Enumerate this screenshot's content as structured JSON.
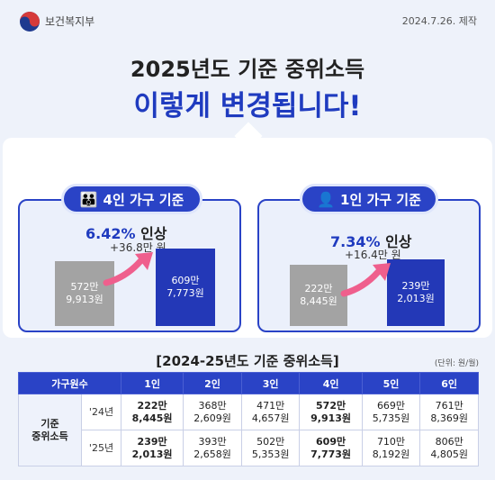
{
  "header": {
    "ministry": "보건복지부",
    "date": "2024.7.26. 제작"
  },
  "title": {
    "line1": "2025년도 기준 중위소득",
    "line2": "이렇게 변경됩니다!"
  },
  "colors": {
    "accent": "#2a43c6",
    "gray_bar": "#a3a3a3",
    "arrow": "#ef5f8d"
  },
  "cards": {
    "four": {
      "label": "4인 가구 기준",
      "icon": "family-icon",
      "rate": "6.42%",
      "rate_suffix": " 인상",
      "increase": "+36.8만 원",
      "before": "572만\n9,913원",
      "after": "609만\n7,773원"
    },
    "one": {
      "label": "1인 가구 기준",
      "icon": "person-icon",
      "rate": "7.34%",
      "rate_suffix": " 인상",
      "increase": "+16.4만 원",
      "before": "222만\n8,445원",
      "after": "239만\n2,013원"
    }
  },
  "table": {
    "title": "[2024-25년도 기준 중위소득]",
    "unit": "(단위: 원/월)",
    "headers": [
      "가구원수",
      "1인",
      "2인",
      "3인",
      "4인",
      "5인",
      "6인"
    ],
    "category": "기준\n중위소득",
    "rows": [
      {
        "year": "'24년",
        "cells": [
          [
            "222만",
            "8,445원"
          ],
          [
            "368만",
            "2,609원"
          ],
          [
            "471만",
            "4,657원"
          ],
          [
            "572만",
            "9,913원"
          ],
          [
            "669만",
            "5,735원"
          ],
          [
            "761만",
            "8,369원"
          ]
        ]
      },
      {
        "year": "'25년",
        "cells": [
          [
            "239만",
            "2,013원"
          ],
          [
            "393만",
            "2,658원"
          ],
          [
            "502만",
            "5,353원"
          ],
          [
            "609만",
            "7,773원"
          ],
          [
            "710만",
            "8,192원"
          ],
          [
            "806만",
            "4,805원"
          ]
        ]
      }
    ]
  }
}
